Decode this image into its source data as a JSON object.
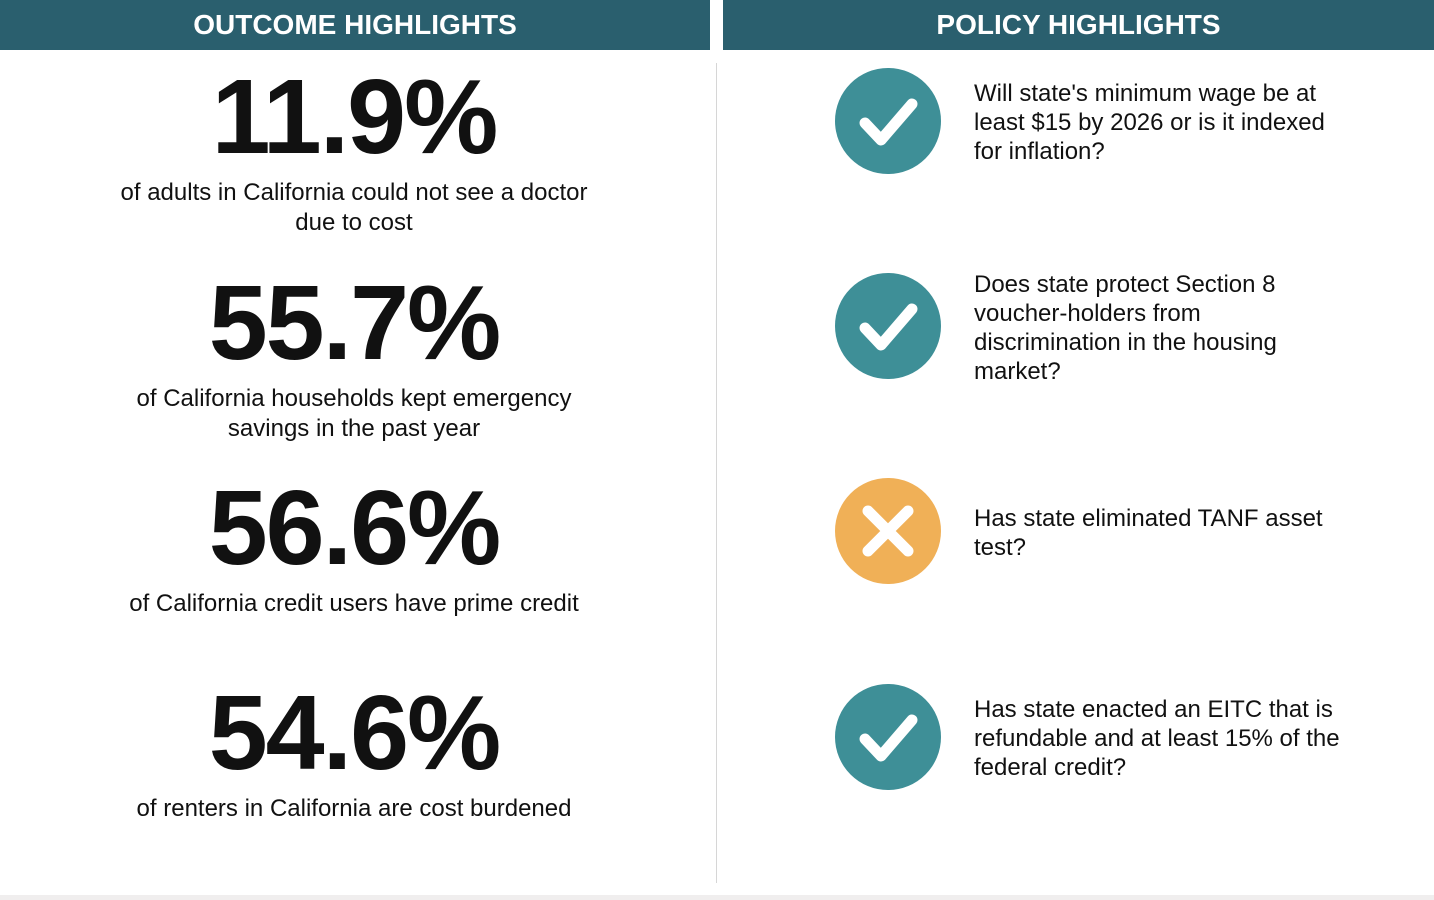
{
  "header": {
    "left_title": "OUTCOME HIGHLIGHTS",
    "right_title": "POLICY HIGHLIGHTS"
  },
  "outcomes": [
    {
      "value": "11.9%",
      "description": "of adults in California could not see a doctor due to cost"
    },
    {
      "value": "55.7%",
      "description": "of California households kept emergency savings in the past year"
    },
    {
      "value": "56.6%",
      "description": "of California credit users have prime credit"
    },
    {
      "value": "54.6%",
      "description": "of renters in California are cost burdened"
    }
  ],
  "policies": [
    {
      "question": "Will state's minimum wage be at least $15 by 2026 or is it indexed for inflation?"
    },
    {
      "question": "Does state protect Section 8 voucher-holders from discrimination in the housing market?"
    },
    {
      "question": "Has state eliminated TANF asset test?"
    },
    {
      "question": "Has state enacted an EITC that is refundable and at least 15% of the federal credit?"
    }
  ]
}
